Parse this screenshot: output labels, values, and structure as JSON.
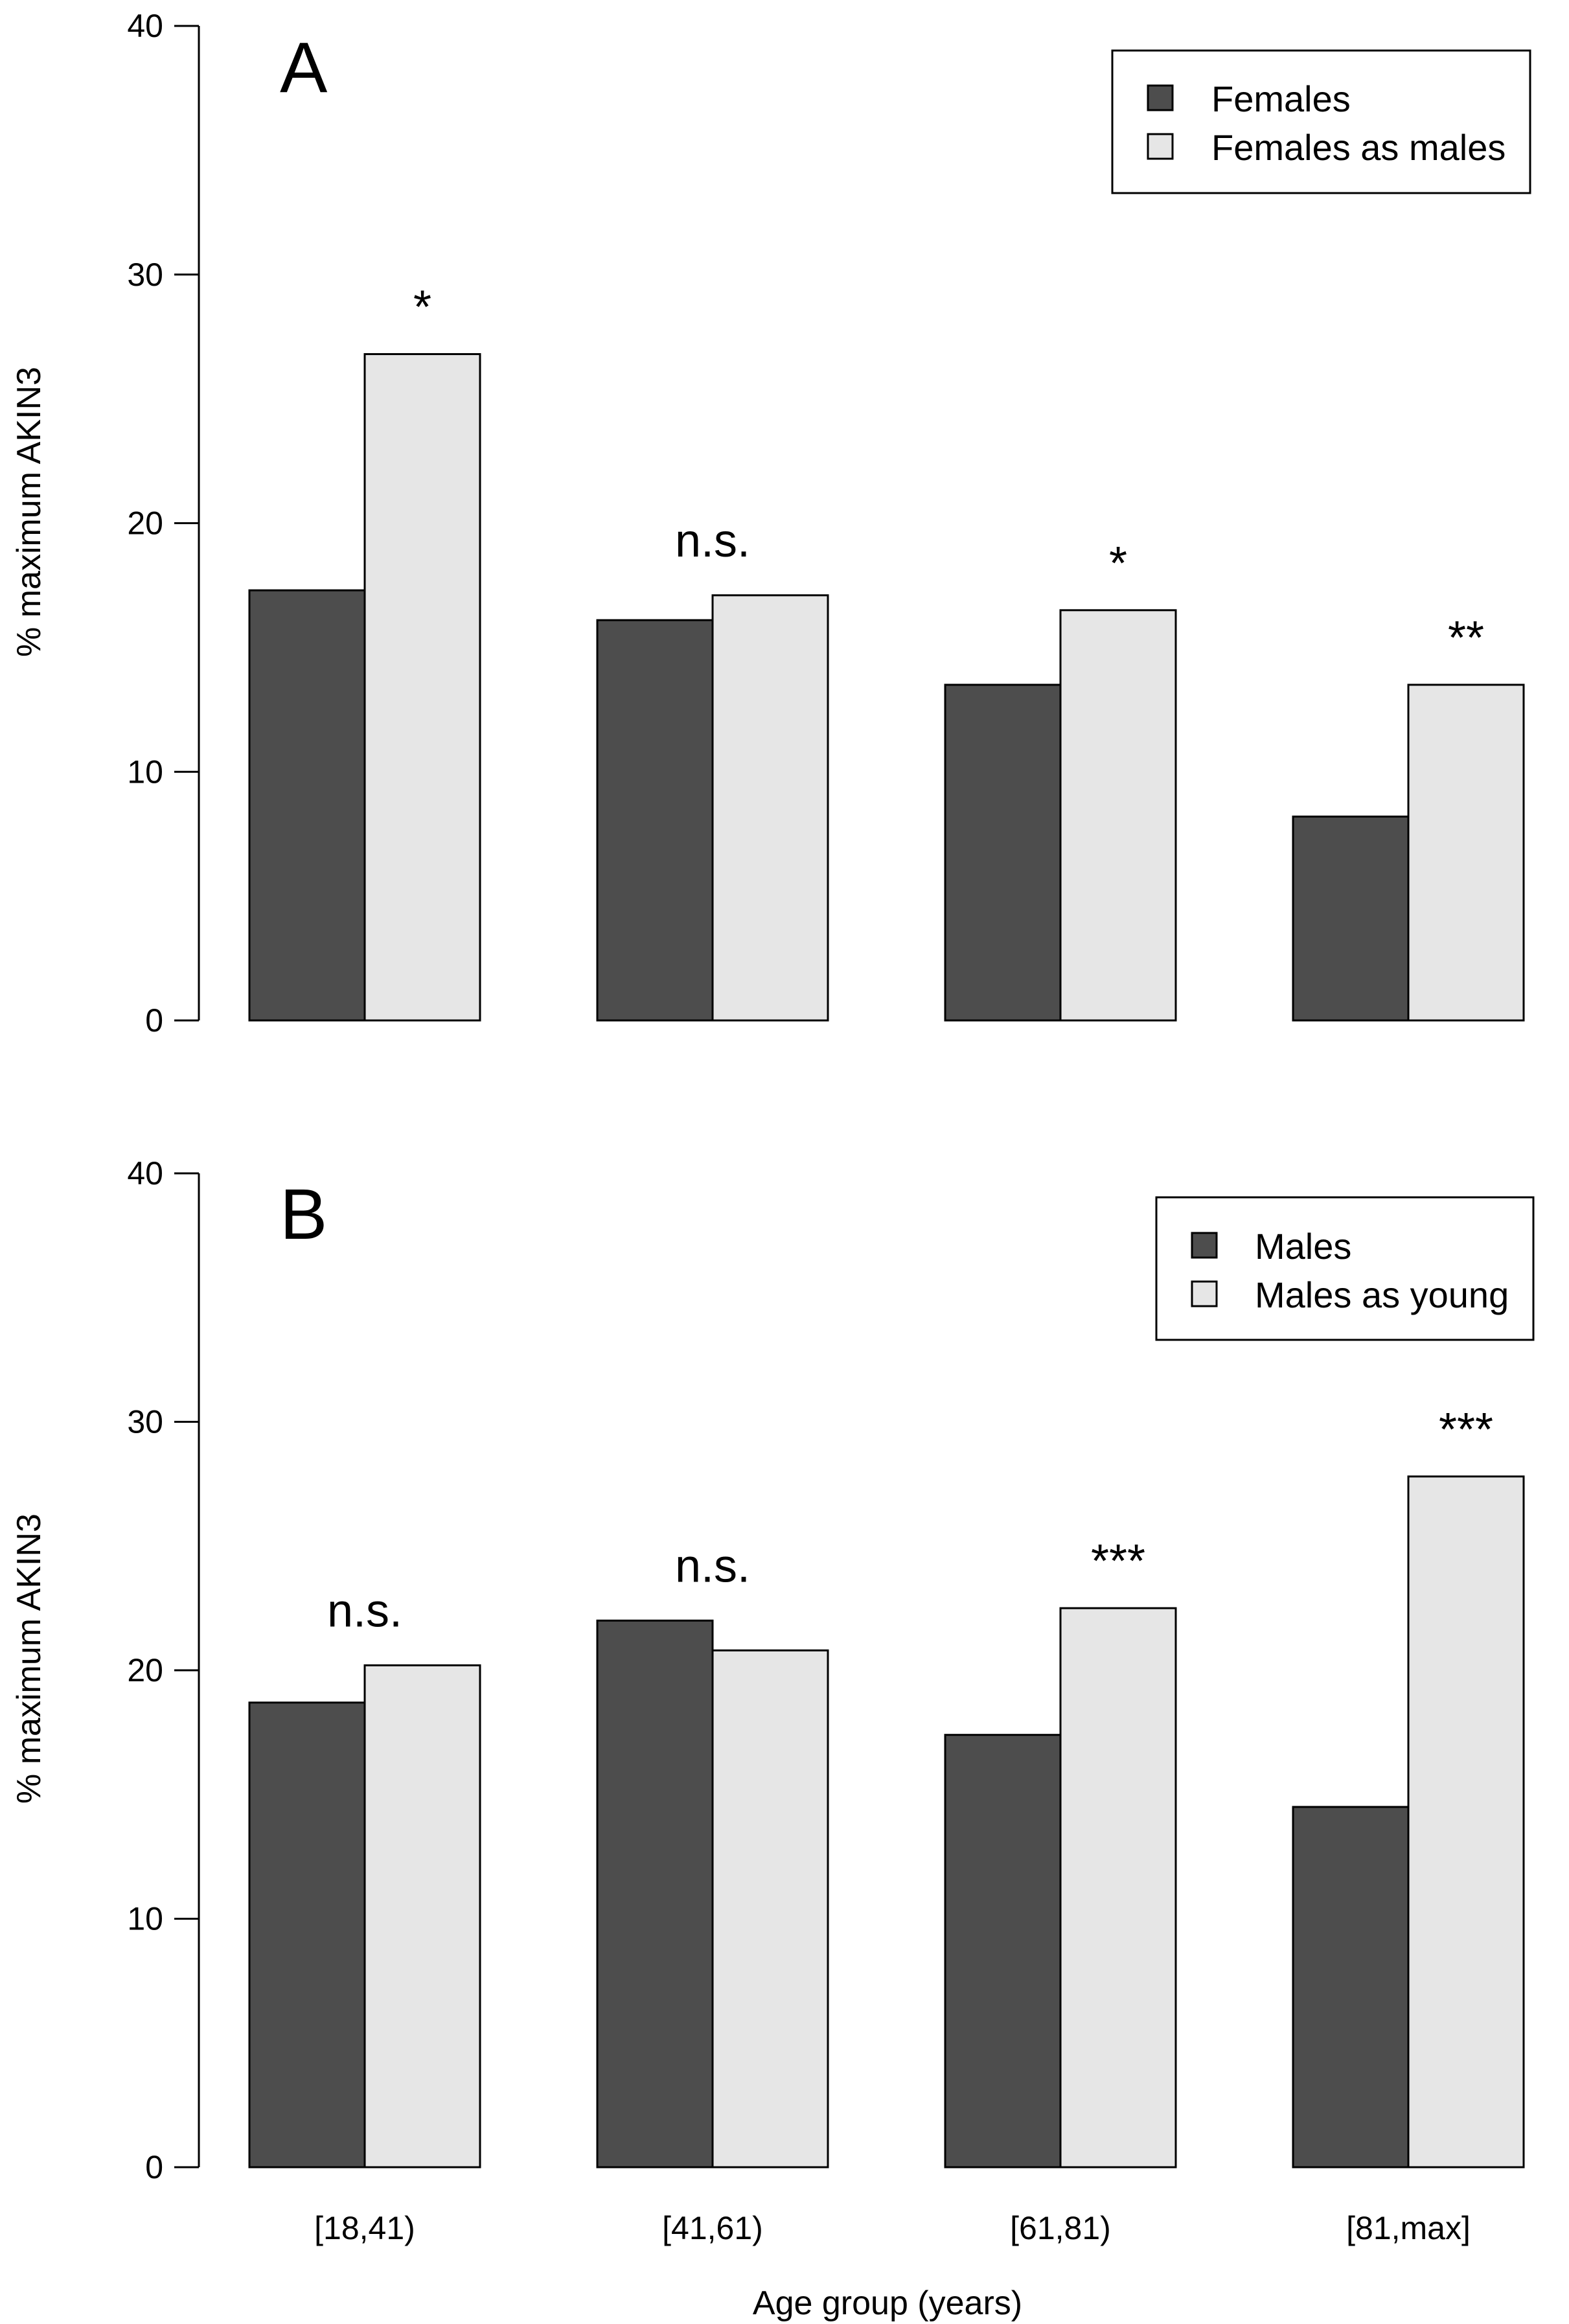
{
  "figure": {
    "xlabel": "Age group (years)"
  },
  "chart_data": [
    {
      "type": "bar",
      "panel_label": "A",
      "title": "",
      "xlabel": "",
      "ylabel": "% maximum AKIN3",
      "ylim": [
        0,
        40
      ],
      "yticks": [
        "0",
        "10",
        "20",
        "30",
        "40"
      ],
      "categories": [
        "[18,41)",
        "[41,61)",
        "[61,81)",
        "[81,max]"
      ],
      "series": [
        {
          "name": "Females",
          "color": "#4d4d4d",
          "values": [
            17.3,
            16.1,
            13.5,
            8.2
          ]
        },
        {
          "name": "Females as males",
          "color": "#e6e6e6",
          "values": [
            26.8,
            17.1,
            16.5,
            13.5
          ]
        }
      ],
      "annotations": [
        "*",
        "n.s.",
        "*",
        "**"
      ],
      "legend_position": "top-right"
    },
    {
      "type": "bar",
      "panel_label": "B",
      "title": "",
      "xlabel": "Age group (years)",
      "ylabel": "% maximum AKIN3",
      "ylim": [
        0,
        40
      ],
      "yticks": [
        "0",
        "10",
        "20",
        "30",
        "40"
      ],
      "categories": [
        "[18,41)",
        "[41,61)",
        "[61,81)",
        "[81,max]"
      ],
      "series": [
        {
          "name": "Males",
          "color": "#4d4d4d",
          "values": [
            18.7,
            22.0,
            17.4,
            14.5
          ]
        },
        {
          "name": "Males as young",
          "color": "#e6e6e6",
          "values": [
            20.2,
            20.8,
            22.5,
            27.8
          ]
        }
      ],
      "annotations": [
        "n.s.",
        "n.s.",
        "***",
        "***"
      ],
      "legend_position": "top-right"
    }
  ]
}
